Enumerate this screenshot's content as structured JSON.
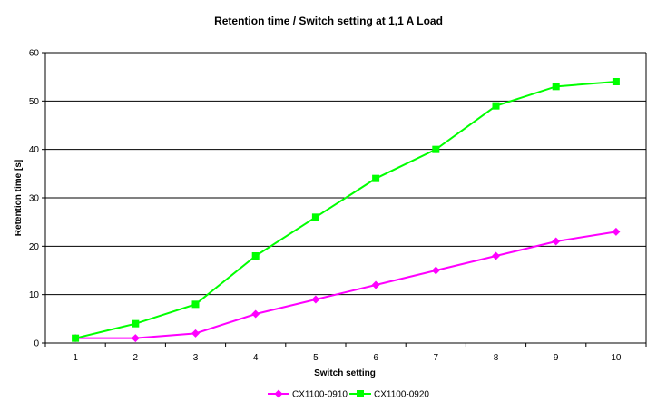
{
  "chart_data": {
    "type": "line",
    "title": "Retention time / Switch setting at 1,1 A Load",
    "xlabel": "Switch setting",
    "ylabel": "Retention time [s]",
    "x": [
      1,
      2,
      3,
      4,
      5,
      6,
      7,
      8,
      9,
      10
    ],
    "ylim": [
      0,
      60
    ],
    "yticks": [
      0,
      10,
      20,
      30,
      40,
      50,
      60
    ],
    "grid": "horizontal",
    "legend_position": "bottom",
    "series": [
      {
        "name": "CX1100-0910",
        "color": "#ff00ff",
        "marker": "diamond",
        "values": [
          1,
          1,
          2,
          6,
          9,
          12,
          15,
          18,
          21,
          23
        ]
      },
      {
        "name": "CX1100-0920",
        "color": "#00ff00",
        "marker": "square",
        "values": [
          1,
          4,
          8,
          18,
          26,
          34,
          40,
          49,
          53,
          54
        ]
      }
    ]
  }
}
